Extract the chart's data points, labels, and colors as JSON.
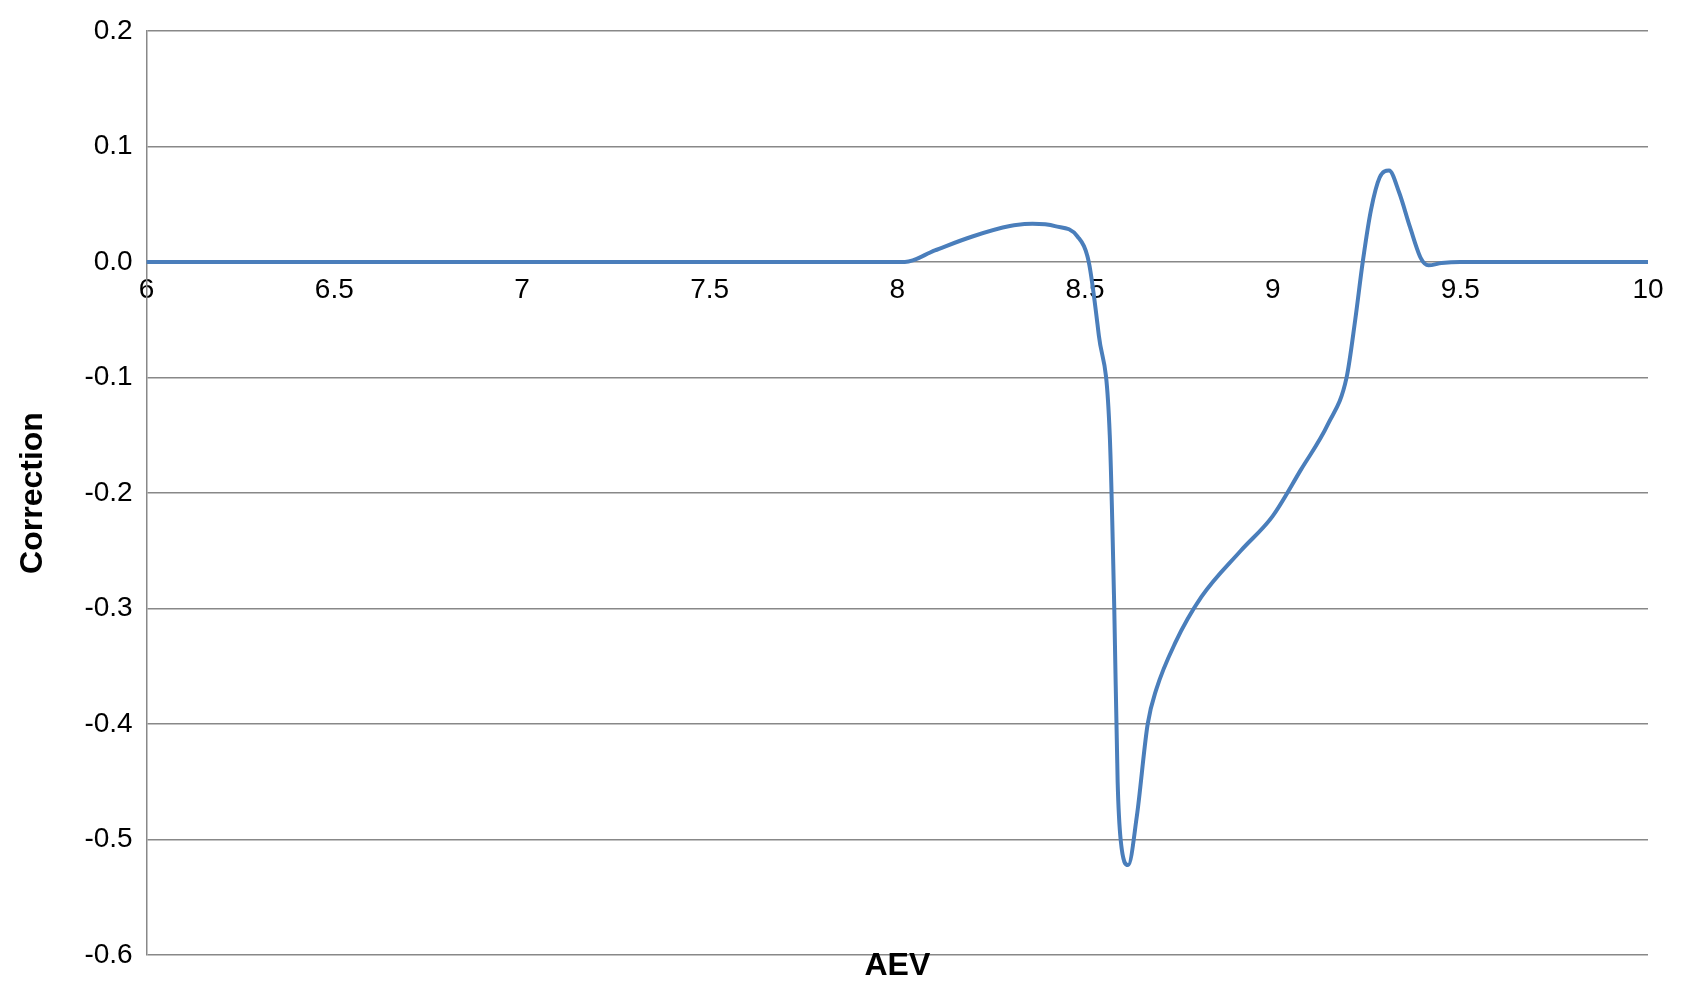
{
  "chart_data": {
    "type": "line",
    "xlabel": "AEV",
    "ylabel": "Correction",
    "x": [
      6,
      7,
      8,
      8.02,
      8.1,
      8.2,
      8.3,
      8.36,
      8.42,
      8.48,
      8.51,
      8.537,
      8.566,
      8.578,
      8.587,
      8.595,
      8.615,
      8.638,
      8.667,
      8.69,
      8.74,
      8.81,
      8.915,
      9.0,
      9.075,
      9.148,
      9.197,
      9.22,
      9.24,
      9.262,
      9.285,
      9.31,
      9.337,
      9.366,
      9.395,
      9.415,
      9.45,
      9.5,
      10
    ],
    "series": [
      {
        "color": "#4a7ebb",
        "values": [
          0,
          0,
          0,
          0,
          0.01,
          0.022,
          0.031,
          0.033,
          0.031,
          0.022,
          0,
          -0.064,
          -0.15,
          -0.3,
          -0.45,
          -0.5,
          -0.522,
          -0.48,
          -0.4,
          -0.37,
          -0.33,
          -0.29,
          -0.25,
          -0.22,
          -0.18,
          -0.14,
          -0.1,
          -0.05,
          0,
          0.045,
          0.073,
          0.079,
          0.06,
          0.03,
          0.003,
          -0.003,
          -0.001,
          0,
          0
        ]
      }
    ],
    "xlim": [
      6,
      10
    ],
    "xticks": [
      6,
      6.5,
      7,
      7.5,
      8,
      8.5,
      9,
      9.5,
      10
    ],
    "ylim": [
      -0.6,
      0.2
    ],
    "yticks": [
      {
        "value": -0.6,
        "label": "-0.6"
      },
      {
        "value": -0.5,
        "label": "-0.5"
      },
      {
        "value": -0.4,
        "label": "-0.4"
      },
      {
        "value": -0.3,
        "label": "-0.3"
      },
      {
        "value": -0.2,
        "label": "-0.2"
      },
      {
        "value": -0.1,
        "label": "-0.1"
      },
      {
        "value": 0,
        "label": "0.0"
      },
      {
        "value": 0.1,
        "label": "0.1"
      },
      {
        "value": 0.2,
        "label": "0.2"
      }
    ],
    "grid": "y",
    "legend": false,
    "marker": "none",
    "line_style": "solid"
  }
}
